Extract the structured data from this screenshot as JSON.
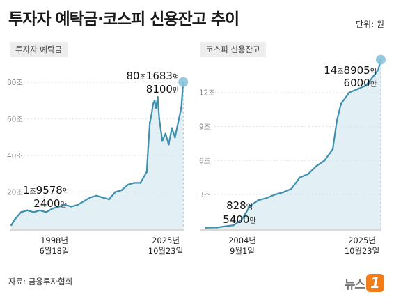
{
  "title": "투자자 예탁금·코스피 신용잔고 추이",
  "unit_label": "단위: 원",
  "source": "자료: 금융투자협회",
  "logo": {
    "text": "뉴스",
    "mark": "1"
  },
  "chart_data": [
    {
      "type": "area",
      "tag": "투자자 예탁금",
      "ylim": [
        0,
        90
      ],
      "yticks": [
        {
          "v": 20,
          "label": "20조"
        },
        {
          "v": 40,
          "label": "40조"
        },
        {
          "v": 60,
          "label": "60조"
        },
        {
          "v": 80,
          "label": "80조"
        }
      ],
      "x": [
        1998.46,
        1999,
        2000,
        2001,
        2002,
        2003,
        2004,
        2005,
        2006,
        2007,
        2008,
        2009,
        2010,
        2011,
        2012,
        2013,
        2014,
        2015,
        2016,
        2017,
        2018,
        2019,
        2020,
        2020.25,
        2020.5,
        2020.75,
        2021,
        2021.25,
        2021.5,
        2021.75,
        2022,
        2022.5,
        2023,
        2023.5,
        2024,
        2024.5,
        2025,
        2025.5,
        2025.81
      ],
      "y": [
        1.96,
        5,
        9,
        10,
        9,
        10,
        9,
        11,
        12,
        13,
        12,
        13,
        15,
        17,
        18,
        17,
        16,
        20,
        21,
        24,
        25,
        25,
        31,
        45,
        58,
        62,
        68,
        70,
        66,
        72,
        60,
        48,
        52,
        46,
        55,
        50,
        58,
        66,
        80.17
      ],
      "start_label": [
        "1998년",
        "6월18일"
      ],
      "end_label": [
        "2025년",
        "10월23일"
      ],
      "annot_start": {
        "big": "1",
        "small1": "조",
        "big2": "9578",
        "small2": "억",
        "line2": "2400",
        "line2_small": "만"
      },
      "annot_end": {
        "big": "80",
        "small1": "조",
        "big2": "1683",
        "small2": "억",
        "line2": "8100",
        "line2_small": "만"
      },
      "colors": {
        "line": "#3e8fb0",
        "fill": "#cfe5ee",
        "dot": "#8cc3da"
      }
    },
    {
      "type": "area",
      "tag": "코스피 신용잔고",
      "ylim": [
        0,
        14.5
      ],
      "yticks": [
        {
          "v": 3,
          "label": "3조"
        },
        {
          "v": 6,
          "label": "6조"
        },
        {
          "v": 9,
          "label": "9조"
        },
        {
          "v": 12,
          "label": "12조"
        }
      ],
      "x": [
        2004.67,
        2006,
        2007,
        2008,
        2009,
        2010,
        2011,
        2012,
        2013,
        2014,
        2015,
        2016,
        2017,
        2018,
        2019,
        2020,
        2020.5,
        2021,
        2022,
        2023,
        2024,
        2025,
        2025.5,
        2025.81
      ],
      "y": [
        0.08,
        0.1,
        0.2,
        0.3,
        0.8,
        2.0,
        2.5,
        2.7,
        3.0,
        3.2,
        3.5,
        4.5,
        4.8,
        5.5,
        6.0,
        7.0,
        9.5,
        11.0,
        12.0,
        12.3,
        12.6,
        13.5,
        14.0,
        14.89
      ],
      "start_label": [
        "2004년",
        "9월1일"
      ],
      "end_label": [
        "2025년",
        "10월23일"
      ],
      "annot_start": {
        "big": "828",
        "small1": "억",
        "big2": "",
        "small2": "",
        "line2": "5400",
        "line2_small": "만"
      },
      "annot_end": {
        "big": "14",
        "small1": "조",
        "big2": "8905",
        "small2": "억",
        "line2": "6000",
        "line2_small": "만"
      },
      "colors": {
        "line": "#3e8fb0",
        "fill": "#cfe5ee",
        "dot": "#8cc3da"
      }
    }
  ]
}
